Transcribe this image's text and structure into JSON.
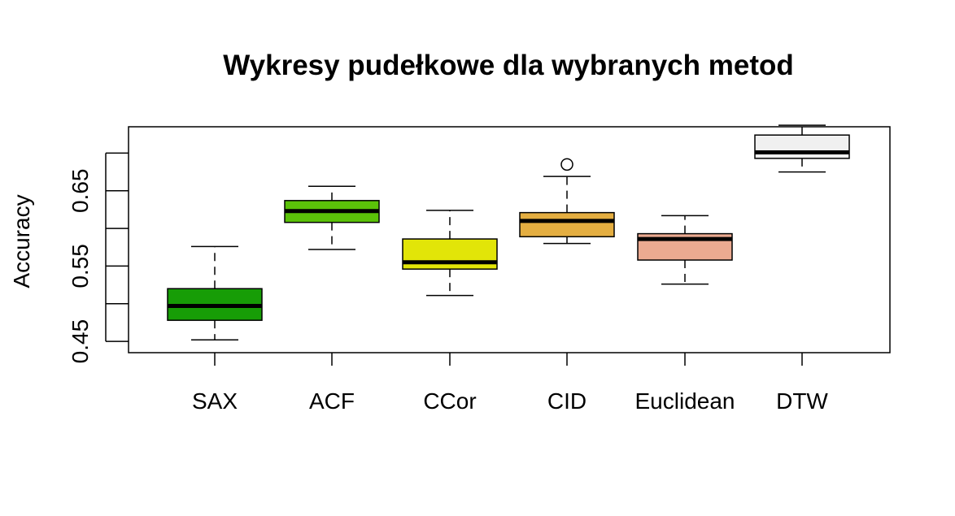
{
  "chart_data": {
    "type": "box",
    "title": "Wykresy pudełkowe dla wybranych metod",
    "xlabel": "",
    "ylabel": "Accuracy",
    "ylim": [
      0.435,
      0.735
    ],
    "yticks": [
      0.45,
      0.5,
      0.55,
      0.6,
      0.65,
      0.7
    ],
    "ytick_labels": [
      "0.45",
      "",
      "0.55",
      "",
      "0.65",
      ""
    ],
    "grid": false,
    "legend": "none",
    "categories": [
      "SAX",
      "ACF",
      "CCor",
      "CID",
      "Euclidean",
      "DTW"
    ],
    "boxes": [
      {
        "label": "SAX",
        "whisker_low": 0.452,
        "q1": 0.478,
        "median": 0.497,
        "q3": 0.52,
        "whisker_high": 0.576,
        "outliers": [],
        "color": "#179D06"
      },
      {
        "label": "ACF",
        "whisker_low": 0.572,
        "q1": 0.608,
        "median": 0.623,
        "q3": 0.637,
        "whisker_high": 0.656,
        "outliers": [],
        "color": "#5BC209"
      },
      {
        "label": "CCor",
        "whisker_low": 0.511,
        "q1": 0.546,
        "median": 0.555,
        "q3": 0.586,
        "whisker_high": 0.624,
        "outliers": [],
        "color": "#E2E508"
      },
      {
        "label": "CID",
        "whisker_low": 0.58,
        "q1": 0.589,
        "median": 0.61,
        "q3": 0.621,
        "whisker_high": 0.669,
        "outliers": [
          0.685
        ],
        "color": "#E4AE41"
      },
      {
        "label": "Euclidean",
        "whisker_low": 0.526,
        "q1": 0.558,
        "median": 0.586,
        "q3": 0.593,
        "whisker_high": 0.617,
        "outliers": [],
        "color": "#EBAA91"
      },
      {
        "label": "DTW",
        "whisker_low": 0.675,
        "q1": 0.693,
        "median": 0.701,
        "q3": 0.724,
        "whisker_high": 0.737,
        "outliers": [],
        "color": "#F0F0F0"
      }
    ]
  }
}
